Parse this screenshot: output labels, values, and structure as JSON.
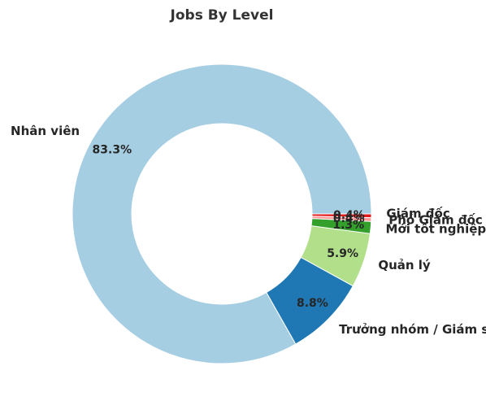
{
  "chart_data": {
    "type": "pie",
    "title": "Jobs By Level",
    "donut": true,
    "slices": [
      {
        "label": "Nhân viên",
        "value": 83.3,
        "pct_label": "83.3%",
        "color": "#a6cee3"
      },
      {
        "label": "Trưởng nhóm / Giám sát",
        "value": 8.8,
        "pct_label": "8.8%",
        "color": "#1f78b4"
      },
      {
        "label": "Quản lý",
        "value": 5.9,
        "pct_label": "5.9%",
        "color": "#b2df8a"
      },
      {
        "label": "Mới tốt nghiệp",
        "value": 1.3,
        "pct_label": "1.3%",
        "color": "#33a02c"
      },
      {
        "label": "Phó Giám đốc",
        "value": 0.4,
        "pct_label": "0.4%",
        "color": "#fb9a99"
      },
      {
        "label": "Giám đốc",
        "value": 0.4,
        "pct_label": "0.4%",
        "color": "#e31a1c"
      }
    ]
  }
}
